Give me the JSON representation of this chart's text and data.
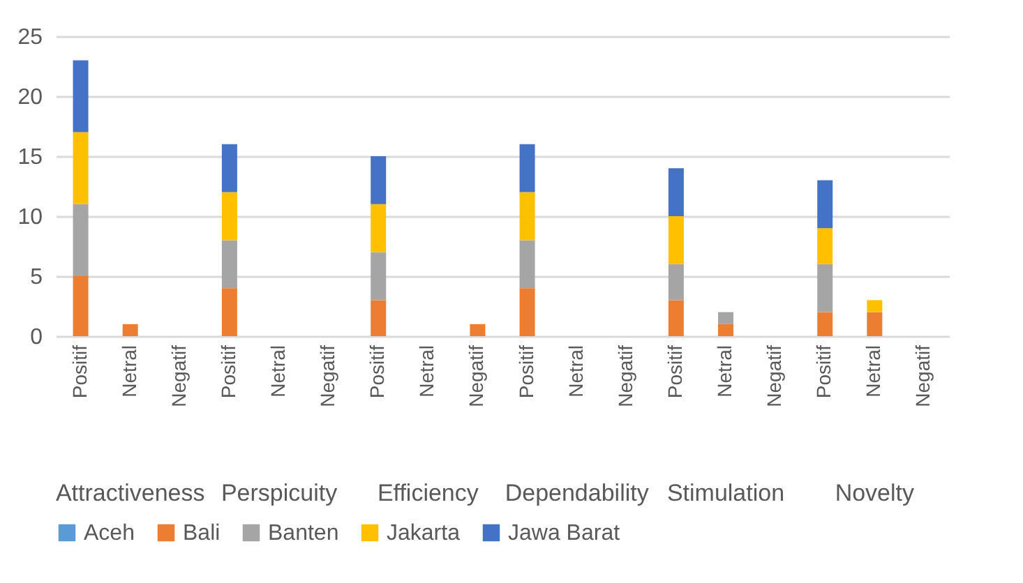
{
  "chart_data": {
    "type": "bar",
    "stacked": true,
    "categories": [
      "Positif",
      "Netral",
      "Negatif",
      "Positif",
      "Netral",
      "Negatif",
      "Positif",
      "Netral",
      "Negatif",
      "Positif",
      "Netral",
      "Negatif",
      "Positif",
      "Netral",
      "Negatif",
      "Positif",
      "Netral",
      "Negatif"
    ],
    "series": [
      {
        "name": "Aceh",
        "color": "#5b9bd5",
        "values": [
          0,
          0,
          0,
          0,
          0,
          0,
          0,
          0,
          0,
          0,
          0,
          0,
          0,
          0,
          0,
          0,
          0,
          0
        ]
      },
      {
        "name": "Bali",
        "color": "#ed7d31",
        "values": [
          5,
          1,
          0,
          4,
          0,
          0,
          3,
          0,
          1,
          4,
          0,
          0,
          3,
          1,
          0,
          2,
          2,
          0
        ]
      },
      {
        "name": "Banten",
        "color": "#a5a5a5",
        "values": [
          6,
          0,
          0,
          4,
          0,
          0,
          4,
          0,
          0,
          4,
          0,
          0,
          3,
          1,
          0,
          4,
          0,
          0
        ]
      },
      {
        "name": "Jakarta",
        "color": "#ffc000",
        "values": [
          6,
          0,
          0,
          4,
          0,
          0,
          4,
          0,
          0,
          4,
          0,
          0,
          4,
          0,
          0,
          3,
          1,
          0
        ]
      },
      {
        "name": "Jawa Barat",
        "color": "#4472c4",
        "values": [
          6,
          0,
          0,
          4,
          0,
          0,
          4,
          0,
          0,
          4,
          0,
          0,
          4,
          0,
          0,
          4,
          0,
          0
        ]
      }
    ],
    "annotations": [
      "Attractiveness",
      "Perspicuity",
      "Efficiency",
      "Dependability",
      "Stimulation",
      "Novelty"
    ],
    "ylim": [
      0,
      25
    ],
    "yticks": [
      0,
      5,
      10,
      15,
      20,
      25
    ],
    "grid": "y",
    "legend": "bottom"
  }
}
